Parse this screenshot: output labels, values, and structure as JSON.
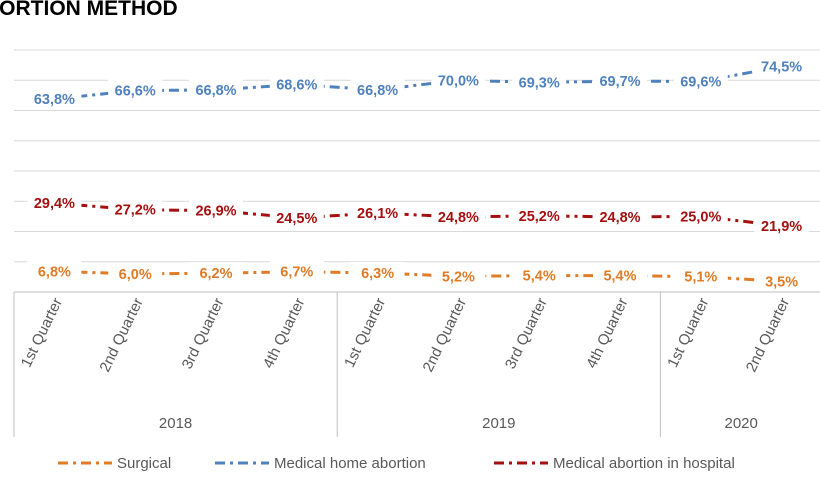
{
  "chart_data": {
    "type": "line",
    "title": "BORTION METHOD",
    "categories": [
      "1st Quarter",
      "2nd Quarter",
      "3rd Quarter",
      "4th Quarter",
      "1st Quarter",
      "2nd Quarter",
      "3rd Quarter",
      "4th Quarter",
      "1st Quarter",
      "2nd Quarter"
    ],
    "year_groups": [
      {
        "label": "2018",
        "count": 4
      },
      {
        "label": "2019",
        "count": 4
      },
      {
        "label": "2020",
        "count": 2
      }
    ],
    "ylim": [
      0,
      80
    ],
    "grid": true,
    "legend_position": "bottom",
    "series": [
      {
        "name": "Medical home abortion",
        "color": "#4F81BD",
        "values": [
          63.8,
          66.6,
          66.8,
          68.6,
          66.8,
          70.0,
          69.3,
          69.7,
          69.6,
          74.5
        ],
        "labels": [
          "63,8%",
          "66,6%",
          "66,8%",
          "68,6%",
          "66,8%",
          "70,0%",
          "69,3%",
          "69,7%",
          "69,6%",
          "74,5%"
        ]
      },
      {
        "name": "Medical abortion in hospital",
        "color": "#A50F0F",
        "values": [
          29.4,
          27.2,
          26.9,
          24.5,
          26.1,
          24.8,
          25.2,
          24.8,
          25.0,
          21.9
        ],
        "labels": [
          "29,4%",
          "27,2%",
          "26,9%",
          "24,5%",
          "26,1%",
          "24,8%",
          "25,2%",
          "24,8%",
          "25,0%",
          "21,9%"
        ]
      },
      {
        "name": "Surgical",
        "color": "#E07B26",
        "values": [
          6.8,
          6.0,
          6.2,
          6.7,
          6.3,
          5.2,
          5.4,
          5.4,
          5.1,
          3.5
        ],
        "labels": [
          "6,8%",
          "6,0%",
          "6,2%",
          "6,7%",
          "6,3%",
          "5,2%",
          "5,4%",
          "5,4%",
          "5,1%",
          "3,5%"
        ]
      }
    ],
    "legend_order": [
      "Surgical",
      "Medical home abortion",
      "Medical abortion in hospital"
    ]
  }
}
